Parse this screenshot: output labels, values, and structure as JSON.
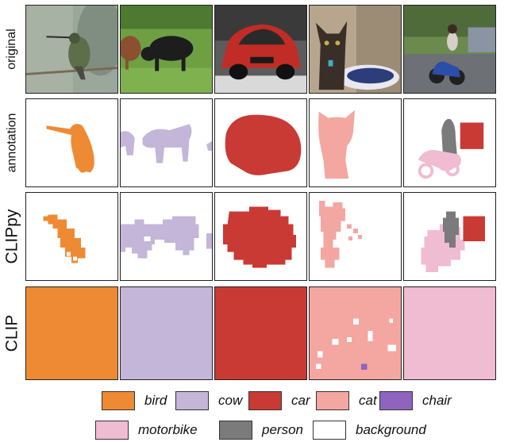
{
  "row_labels": [
    "original",
    "annotation",
    "CLIPpy",
    "CLIP"
  ],
  "legend": [
    {
      "label": "bird",
      "color": "#ef8a34"
    },
    {
      "label": "cow",
      "color": "#c4b6d8"
    },
    {
      "label": "car",
      "color": "#c93a34"
    },
    {
      "label": "cat",
      "color": "#f4a6a0"
    },
    {
      "label": "chair",
      "color": "#8f64bf"
    },
    {
      "label": "motorbike",
      "color": "#f0bcd2"
    },
    {
      "label": "person",
      "color": "#7b7b7b"
    },
    {
      "label": "background",
      "color": "#ffffff"
    }
  ],
  "clip_colors": [
    "#ef8a34",
    "#c4b6d8",
    "#c93a34",
    "#f4a6a0",
    "#f0bcd2"
  ]
}
